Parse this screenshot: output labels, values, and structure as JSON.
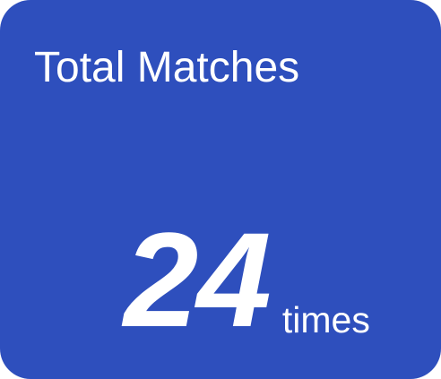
{
  "card": {
    "title": "Total Matches",
    "value": "24",
    "unit": "times"
  },
  "colors": {
    "card_background": "#2e4fbd",
    "text": "#ffffff"
  }
}
